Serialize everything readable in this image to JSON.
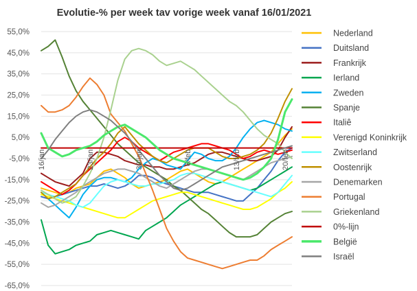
{
  "chart_data": {
    "type": "line",
    "title": "Evolutie-% per week tav vorige week vanaf 16/01/2021",
    "xlabel": "",
    "ylabel": "",
    "ylim": [
      -65,
      55
    ],
    "yticks": [
      55,
      45,
      35,
      25,
      15,
      5,
      -5,
      -15,
      -25,
      -35,
      -45,
      -55,
      -65
    ],
    "ytick_labels": [
      "55,0%",
      "45,0%",
      "35,0%",
      "25,0%",
      "15,0%",
      "5,0%",
      "-5,0%",
      "-15,0%",
      "-25,0%",
      "-35,0%",
      "-45,0%",
      "-55,0%",
      "-65,0%"
    ],
    "x": [
      "16/jan",
      "17/jan",
      "18/jan",
      "19/jan",
      "20/jan",
      "21/jan",
      "22/jan",
      "23/jan",
      "24/jan",
      "25/jan",
      "26/jan",
      "27/jan",
      "28/jan",
      "29/jan",
      "30/jan",
      "31/jan",
      "1/feb",
      "2/feb",
      "3/feb",
      "4/feb",
      "5/feb",
      "6/feb",
      "7/feb",
      "8/feb",
      "9/feb",
      "10/feb",
      "11/feb",
      "12/feb",
      "13/feb",
      "14/feb",
      "15/feb",
      "16/feb",
      "17/feb",
      "18/feb",
      "19/feb",
      "20/feb",
      "21/feb"
    ],
    "xtick_labels": [
      {
        "index": 0,
        "label": "16/jan"
      },
      {
        "index": 7,
        "label": "23/jan"
      },
      {
        "index": 14,
        "label": "30/jan"
      },
      {
        "index": 21,
        "label": "6/feb"
      },
      {
        "index": 28,
        "label": "13/feb"
      },
      {
        "index": 35,
        "label": "20/feb"
      }
    ],
    "grid": true,
    "legend": "right",
    "series": [
      {
        "name": "Nederland",
        "color": "#ffc000",
        "width": 2,
        "values": [
          -19,
          -20,
          -21,
          -22,
          -21,
          -19,
          -18,
          -17,
          -14,
          -11,
          -10,
          -12,
          -14,
          -17,
          -19,
          -18,
          -17,
          -16,
          -15,
          -13,
          -11,
          -10,
          -12,
          -14,
          -16,
          -17,
          -16,
          -14,
          -12,
          -10,
          -8,
          -6,
          -4,
          -2,
          2,
          6,
          9
        ]
      },
      {
        "name": "Duitsland",
        "color": "#4472c4",
        "width": 2,
        "values": [
          -23,
          -24,
          -23,
          -22,
          -21,
          -20,
          -19,
          -18,
          -18,
          -17,
          -18,
          -19,
          -18,
          -16,
          -13,
          -13,
          -14,
          -16,
          -17,
          -18,
          -19,
          -20,
          -21,
          -21,
          -21,
          -22,
          -23,
          -24,
          -25,
          -25,
          -22,
          -19,
          -15,
          -11,
          -6,
          -2,
          0
        ]
      },
      {
        "name": "Frankrijk",
        "color": "#9b1c1c",
        "width": 2,
        "values": [
          -12,
          -14,
          -16,
          -17,
          -18,
          -15,
          -12,
          -5,
          -2,
          -2,
          -3,
          -4,
          -6,
          -7,
          -8,
          -8,
          -9,
          -9,
          -10,
          -10,
          -9,
          -8,
          -7,
          -5,
          -3,
          -2,
          -2,
          -3,
          -4,
          -5,
          -6,
          -6,
          -5,
          -4,
          -1,
          5,
          10
        ]
      },
      {
        "name": "Ierland",
        "color": "#00a64f",
        "width": 2,
        "values": [
          -34,
          -46,
          -50,
          -49,
          -48,
          -46,
          -45,
          -44,
          -41,
          -40,
          -39,
          -40,
          -41,
          -42,
          -43,
          -39,
          -37,
          -35,
          -33,
          -30,
          -27,
          -25,
          -23,
          -21,
          -19,
          -17,
          -16,
          -17,
          -18,
          -19,
          -20,
          -19,
          -17,
          -15,
          -13,
          -11,
          -9
        ]
      },
      {
        "name": "Zweden",
        "color": "#00b0f0",
        "width": 2,
        "values": [
          -21,
          -24,
          -27,
          -30,
          -33,
          -28,
          -22,
          -18,
          -15,
          -14,
          -14,
          -15,
          -16,
          -14,
          -10,
          -7,
          -5,
          -6,
          -8,
          -9,
          -10,
          -6,
          -2,
          -3,
          -5,
          -6,
          -6,
          -4,
          0,
          5,
          9,
          12,
          13,
          12,
          11,
          9,
          8
        ]
      },
      {
        "name": "Spanje",
        "color": "#548235",
        "width": 2,
        "values": [
          46,
          48,
          51,
          43,
          34,
          27,
          22,
          18,
          14,
          10,
          6,
          2,
          -1,
          -4,
          -7,
          -9,
          -11,
          -13,
          -15,
          -18,
          -20,
          -23,
          -26,
          -29,
          -31,
          -34,
          -37,
          -40,
          -42,
          -42,
          -42,
          -41,
          -38,
          -35,
          -33,
          -31,
          -30
        ]
      },
      {
        "name": "Italiê",
        "color": "#ff0000",
        "width": 2,
        "values": [
          -16,
          -18,
          -20,
          -22,
          -20,
          -17,
          -13,
          -10,
          -7,
          -4,
          -1,
          3,
          5,
          3,
          0,
          -2,
          -4,
          -6,
          -4,
          -2,
          -1,
          0,
          1,
          2,
          2,
          1,
          0,
          -1,
          -3,
          -5,
          -4,
          -2,
          -1,
          -2,
          -3,
          -2,
          -1
        ]
      },
      {
        "name": "Verenigd Koninkrijk",
        "color": "#ffff00",
        "width": 2,
        "values": [
          -22,
          -23,
          -24,
          -25,
          -26,
          -27,
          -28,
          -29,
          -30,
          -31,
          -32,
          -33,
          -33,
          -31,
          -29,
          -27,
          -25,
          -24,
          -23,
          -22,
          -21,
          -21,
          -22,
          -23,
          -24,
          -25,
          -26,
          -27,
          -28,
          -29,
          -29,
          -28,
          -26,
          -24,
          -21,
          -19,
          -16
        ]
      },
      {
        "name": "Zwitserland",
        "color": "#66ffff",
        "width": 2,
        "values": [
          -21,
          -22,
          -23,
          -24,
          -25,
          -27,
          -28,
          -26,
          -22,
          -18,
          -16,
          -15,
          -16,
          -17,
          -18,
          -18,
          -17,
          -17,
          -16,
          -15,
          -13,
          -12,
          -12,
          -13,
          -14,
          -15,
          -16,
          -17,
          -18,
          -19,
          -20,
          -21,
          -22,
          -23,
          -21,
          -17,
          -13
        ]
      },
      {
        "name": "Oostenrijk",
        "color": "#bf9000",
        "width": 2,
        "values": [
          -21,
          -24,
          -23,
          -21,
          -19,
          -17,
          -13,
          -9,
          -5,
          -2,
          2,
          7,
          10,
          6,
          2,
          -1,
          -4,
          -6,
          -7,
          -5,
          -3,
          -1,
          0,
          0,
          0,
          -2,
          -4,
          -5,
          -5,
          -4,
          -3,
          -1,
          2,
          7,
          14,
          22,
          28
        ]
      },
      {
        "name": "Denemarken",
        "color": "#a6a6a6",
        "width": 2,
        "values": [
          -26,
          -28,
          -27,
          -25,
          -23,
          -21,
          -18,
          -16,
          -14,
          -12,
          -11,
          -10,
          -10,
          -11,
          -12,
          -14,
          -16,
          -18,
          -19,
          -17,
          -15,
          -13,
          -11,
          -10,
          -10,
          -11,
          -12,
          -13,
          -14,
          -15,
          -13,
          -11,
          -9,
          -7,
          -6,
          -5,
          -4
        ]
      },
      {
        "name": "Portugal",
        "color": "#ed7d31",
        "width": 2,
        "values": [
          20,
          17,
          17,
          18,
          20,
          24,
          29,
          33,
          30,
          25,
          16,
          12,
          8,
          2,
          -4,
          -12,
          -20,
          -29,
          -38,
          -44,
          -49,
          -52,
          -53,
          -54,
          -55,
          -56,
          -57,
          -56,
          -55,
          -54,
          -53,
          -53,
          -51,
          -48,
          -46,
          -44,
          -42
        ]
      },
      {
        "name": "Griekenland",
        "color": "#a9d18e",
        "width": 2,
        "values": [
          -20,
          -22,
          -24,
          -26,
          -25,
          -23,
          -18,
          -12,
          -5,
          5,
          18,
          32,
          42,
          46,
          47,
          46,
          44,
          41,
          39,
          40,
          41,
          39,
          37,
          34,
          31,
          28,
          25,
          22,
          20,
          17,
          13,
          9,
          6,
          4,
          2,
          -2,
          -5
        ]
      },
      {
        "name": "0%-lijn",
        "color": "#c00000",
        "width": 2,
        "values": [
          0,
          0,
          0,
          0,
          0,
          0,
          0,
          0,
          0,
          0,
          0,
          0,
          0,
          0,
          0,
          0,
          0,
          0,
          0,
          0,
          0,
          0,
          0,
          0,
          0,
          0,
          0,
          0,
          0,
          0,
          0,
          0,
          0,
          0,
          0,
          0,
          0
        ]
      },
      {
        "name": "België",
        "color": "#4be86b",
        "width": 3,
        "values": [
          7,
          0,
          -2,
          -4,
          -3,
          -1,
          0,
          1,
          3,
          6,
          8,
          10,
          11,
          9,
          7,
          5,
          2,
          -1,
          -3,
          -5,
          -6,
          -7,
          -8,
          -9,
          -10,
          -11,
          -12,
          -13,
          -14,
          -15,
          -14,
          -12,
          -9,
          -5,
          4,
          17,
          23
        ]
      },
      {
        "name": "Israël",
        "color": "#7f7f7f",
        "width": 2,
        "values": [
          -5,
          -1,
          4,
          8,
          12,
          15,
          17,
          18,
          17,
          15,
          13,
          10,
          7,
          3,
          -1,
          -5,
          -9,
          -13,
          -16,
          -19,
          -20,
          -19,
          -17,
          -15,
          -13,
          -11,
          -9,
          -8,
          -7,
          -6,
          -5,
          -4,
          -3,
          -2,
          -1,
          0,
          1
        ]
      }
    ]
  }
}
